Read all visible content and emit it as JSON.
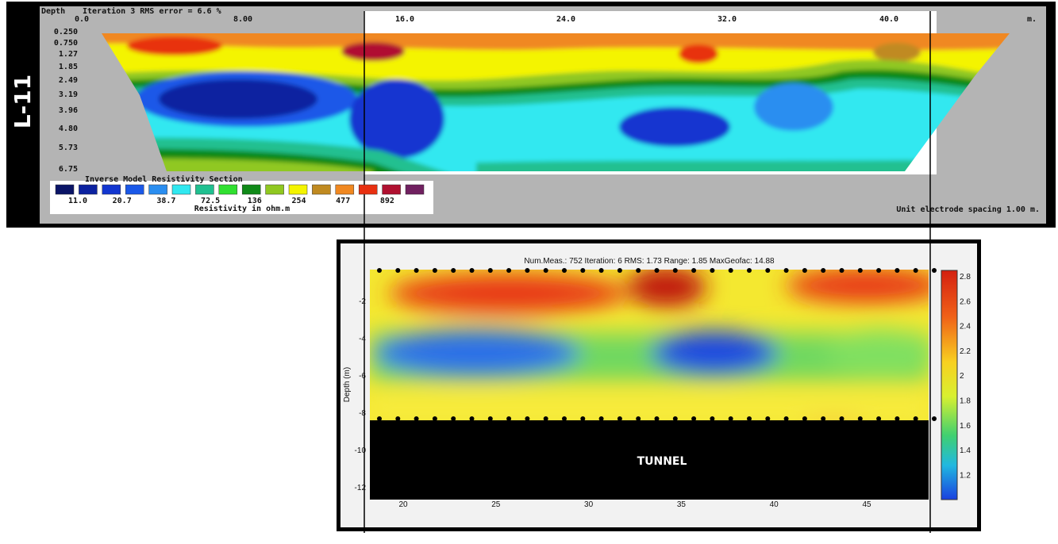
{
  "top_panel": {
    "side_label": "L-11",
    "depth_header": "Depth",
    "iteration_text": "Iteration 3 RMS error = 6.6 %",
    "x_labels": [
      "0.0",
      "8.00",
      "16.0",
      "24.0",
      "32.0",
      "40.0",
      "m."
    ],
    "depth_labels": [
      "0.250",
      "0.750",
      "1.27",
      "1.85",
      "2.49",
      "3.19",
      "3.96",
      "4.80",
      "5.73",
      "6.75"
    ],
    "legend": {
      "title": "Inverse Model Resistivity Section",
      "colors": [
        "#0a1466",
        "#0c22a0",
        "#1236d0",
        "#1a58e8",
        "#2a8ef0",
        "#30e8f0",
        "#20c090",
        "#30e030",
        "#108a18",
        "#90c820",
        "#f4f400",
        "#c08a20",
        "#f08820",
        "#e83010",
        "#b01030",
        "#702060"
      ],
      "labels": [
        "11.0",
        "20.7",
        "38.7",
        "72.5",
        "136",
        "254",
        "477",
        "892"
      ],
      "unit": "Resistivity in ohm.m"
    },
    "spacing_note": "Unit electrode spacing 1.00 m."
  },
  "bottom_panel": {
    "header": "Num.Meas.: 752   Iteration: 6   RMS: 1.73   Range: 1.85   MaxGeofac: 14.88",
    "y_axis_title": "Depth (m)",
    "y_labels": [
      "-2",
      "-4",
      "-6",
      "-8",
      "-10",
      "-12"
    ],
    "x_labels": [
      "20",
      "25",
      "30",
      "35",
      "40",
      "45"
    ],
    "colorbar_labels": [
      "2.8",
      "2.6",
      "2.4",
      "2.2",
      "2",
      "1.8",
      "1.6",
      "1.4",
      "1.2"
    ],
    "annotation": "TUNNEL"
  }
}
